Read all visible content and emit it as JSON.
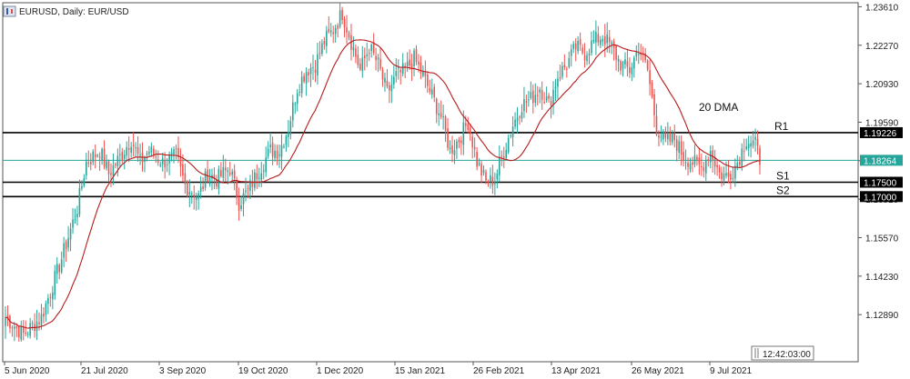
{
  "header": {
    "title": "EURUSD, Daily:  EUR/USD",
    "icon": "candlestick-chart-icon"
  },
  "clock": "12:42:03:00",
  "colors": {
    "bull": "#26a69a",
    "bear": "#ef5350",
    "ma": "#b71c1c",
    "current": "#26a69a",
    "level": "#000000",
    "frame": "#555555"
  },
  "chart_data": {
    "type": "candlestick",
    "symbol": "EURUSD",
    "timeframe": "Daily",
    "ylim": [
      1.1125,
      1.2375
    ],
    "y_ticks": [
      "1.23610",
      "1.22270",
      "1.20930",
      "1.19590",
      "1.18250",
      "1.16910",
      "1.15570",
      "1.14230",
      "1.12890"
    ],
    "x_ticks": [
      "5 Jun 2020",
      "21 Jul 2020",
      "3 Sep 2020",
      "19 Oct 2020",
      "1 Dec 2020",
      "15 Jan 2021",
      "26 Feb 2021",
      "13 Apr 2021",
      "26 May 2021",
      "9 Jul 2021"
    ],
    "levels": [
      {
        "name": "R1",
        "value": 1.19226,
        "label": "1.19226"
      },
      {
        "name": "S1",
        "value": 1.175,
        "label": "1.17500"
      },
      {
        "name": "S2",
        "value": 1.17,
        "label": "1.17000"
      }
    ],
    "current_price": {
      "value": 1.18264,
      "label": "1.18264"
    },
    "ma_label": "20 DMA",
    "path_points": [
      [
        0,
        1.128
      ],
      [
        8,
        1.122
      ],
      [
        16,
        1.128
      ],
      [
        24,
        1.146
      ],
      [
        32,
        1.166
      ],
      [
        36,
        1.182
      ],
      [
        42,
        1.186
      ],
      [
        46,
        1.178
      ],
      [
        52,
        1.185
      ],
      [
        56,
        1.19
      ],
      [
        60,
        1.182
      ],
      [
        64,
        1.186
      ],
      [
        70,
        1.182
      ],
      [
        76,
        1.184
      ],
      [
        80,
        1.174
      ],
      [
        86,
        1.17
      ],
      [
        90,
        1.178
      ],
      [
        94,
        1.176
      ],
      [
        100,
        1.18
      ],
      [
        104,
        1.168
      ],
      [
        108,
        1.172
      ],
      [
        112,
        1.178
      ],
      [
        118,
        1.186
      ],
      [
        122,
        1.186
      ],
      [
        126,
        1.194
      ],
      [
        130,
        1.208
      ],
      [
        134,
        1.214
      ],
      [
        138,
        1.216
      ],
      [
        142,
        1.224
      ],
      [
        146,
        1.228
      ],
      [
        150,
        1.234
      ],
      [
        154,
        1.224
      ],
      [
        158,
        1.214
      ],
      [
        162,
        1.222
      ],
      [
        166,
        1.216
      ],
      [
        170,
        1.206
      ],
      [
        174,
        1.212
      ],
      [
        178,
        1.214
      ],
      [
        182,
        1.218
      ],
      [
        186,
        1.212
      ],
      [
        190,
        1.205
      ],
      [
        194,
        1.198
      ],
      [
        198,
        1.186
      ],
      [
        202,
        1.19
      ],
      [
        206,
        1.196
      ],
      [
        210,
        1.182
      ],
      [
        214,
        1.175
      ],
      [
        218,
        1.176
      ],
      [
        222,
        1.186
      ],
      [
        226,
        1.195
      ],
      [
        230,
        1.202
      ],
      [
        234,
        1.204
      ],
      [
        238,
        1.208
      ],
      [
        242,
        1.202
      ],
      [
        246,
        1.212
      ],
      [
        250,
        1.216
      ],
      [
        254,
        1.222
      ],
      [
        258,
        1.22
      ],
      [
        262,
        1.224
      ],
      [
        266,
        1.226
      ],
      [
        270,
        1.222
      ],
      [
        274,
        1.216
      ],
      [
        278,
        1.214
      ],
      [
        282,
        1.222
      ],
      [
        286,
        1.214
      ],
      [
        290,
        1.194
      ],
      [
        294,
        1.189
      ],
      [
        298,
        1.19
      ],
      [
        302,
        1.184
      ],
      [
        306,
        1.182
      ],
      [
        310,
        1.18
      ],
      [
        314,
        1.186
      ],
      [
        318,
        1.178
      ],
      [
        322,
        1.177
      ],
      [
        326,
        1.182
      ],
      [
        330,
        1.19
      ],
      [
        334,
        1.188
      ],
      [
        336,
        1.183
      ]
    ]
  }
}
